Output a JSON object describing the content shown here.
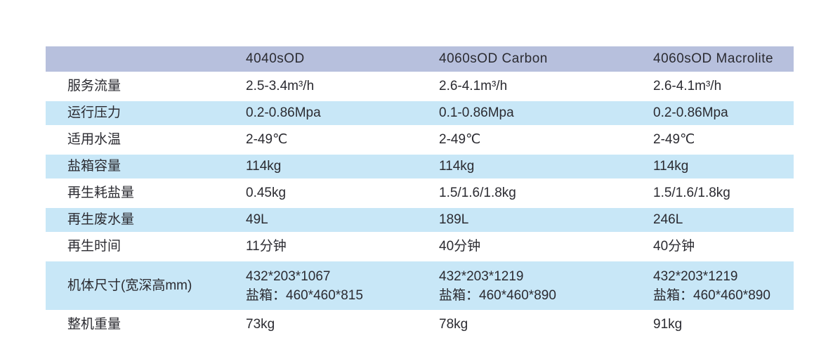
{
  "colors": {
    "header_bg": "#b7c0dd",
    "stripe_bg": "#c8e7f7",
    "text": "#2b2b31",
    "page_bg": "#ffffff"
  },
  "chart_data": {
    "type": "table",
    "title": "",
    "columns": [
      "",
      "4040sOD",
      "4060sOD Carbon",
      "4060sOD Macrolite"
    ],
    "rows": [
      {
        "label": "服务流量",
        "values": [
          "2.5-3.4m³/h",
          "2.6-4.1m³/h",
          "2.6-4.1m³/h"
        ]
      },
      {
        "label": "运行压力",
        "values": [
          "0.2-0.86Mpa",
          "0.1-0.86Mpa",
          "0.2-0.86Mpa"
        ]
      },
      {
        "label": "适用水温",
        "values": [
          "2-49℃",
          "2-49℃",
          "2-49℃"
        ]
      },
      {
        "label": "盐箱容量",
        "values": [
          "114kg",
          "114kg",
          "114kg"
        ]
      },
      {
        "label": "再生耗盐量",
        "values": [
          "0.45kg",
          "1.5/1.6/1.8kg",
          "1.5/1.6/1.8kg"
        ]
      },
      {
        "label": "再生废水量",
        "values": [
          "49L",
          "189L",
          "246L"
        ]
      },
      {
        "label": "再生时间",
        "values": [
          "11分钟",
          "40分钟",
          "40分钟"
        ]
      },
      {
        "label": "机体尺寸(宽深高mm)",
        "values": [
          "432*203*1067\n盐箱：460*460*815",
          "432*203*1219\n盐箱：460*460*890",
          "432*203*1219\n盐箱：460*460*890"
        ]
      },
      {
        "label": "整机重量",
        "values": [
          "73kg",
          "78kg",
          "91kg"
        ]
      }
    ],
    "layout": {
      "stripe_rows": [
        "运行压力",
        "盐箱容量",
        "再生废水量",
        "机体尺寸(宽深高mm)"
      ],
      "header_fill": "#b7c0dd",
      "stripe_fill": "#c8e7f7"
    }
  }
}
